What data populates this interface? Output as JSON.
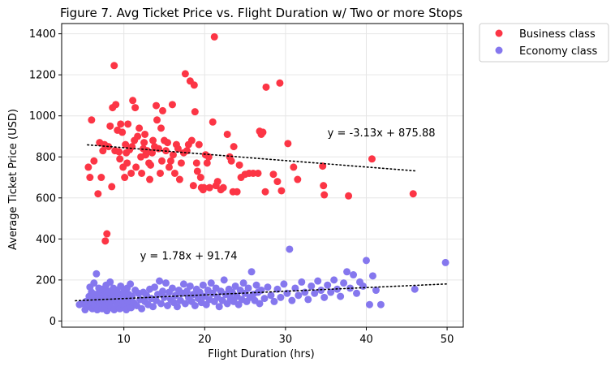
{
  "chart_data": {
    "type": "scatter",
    "title": "Figure 7. Avg Ticket Price vs. Flight Duration w/ Two or more Stops",
    "xlabel": "Flight Duration (hrs)",
    "ylabel": "Average Ticket Price (USD)",
    "xlim": [
      2.3,
      52.0
    ],
    "ylim": [
      -30,
      1450
    ],
    "xticks": [
      10,
      20,
      30,
      40,
      50
    ],
    "yticks": [
      0,
      200,
      400,
      600,
      800,
      1000,
      1200,
      1400
    ],
    "grid": true,
    "legend_position": "outside-top-right",
    "series": [
      {
        "name": "Business class",
        "color": "#fc3545",
        "points": [
          [
            5.6,
            750
          ],
          [
            5.8,
            700
          ],
          [
            6.0,
            980
          ],
          [
            6.3,
            780
          ],
          [
            6.8,
            620
          ],
          [
            7.0,
            870
          ],
          [
            7.2,
            700
          ],
          [
            7.4,
            830
          ],
          [
            7.6,
            860
          ],
          [
            7.7,
            390
          ],
          [
            7.9,
            425
          ],
          [
            8.1,
            850
          ],
          [
            8.3,
            950
          ],
          [
            8.5,
            655
          ],
          [
            8.6,
            1040
          ],
          [
            8.8,
            1245
          ],
          [
            8.9,
            830
          ],
          [
            9.0,
            1055
          ],
          [
            9.2,
            930
          ],
          [
            9.4,
            825
          ],
          [
            9.5,
            790
          ],
          [
            9.6,
            960
          ],
          [
            9.8,
            920
          ],
          [
            9.9,
            750
          ],
          [
            10.1,
            700
          ],
          [
            10.2,
            860
          ],
          [
            10.3,
            820
          ],
          [
            10.4,
            770
          ],
          [
            10.5,
            960
          ],
          [
            10.7,
            835
          ],
          [
            10.9,
            720
          ],
          [
            11.0,
            850
          ],
          [
            11.1,
            1075
          ],
          [
            11.3,
            880
          ],
          [
            11.4,
            1040
          ],
          [
            11.5,
            750
          ],
          [
            11.7,
            900
          ],
          [
            11.9,
            940
          ],
          [
            12.1,
            800
          ],
          [
            12.2,
            720
          ],
          [
            12.4,
            840
          ],
          [
            12.5,
            870
          ],
          [
            12.6,
            910
          ],
          [
            12.7,
            810
          ],
          [
            12.9,
            830
          ],
          [
            13.1,
            770
          ],
          [
            13.2,
            690
          ],
          [
            13.3,
            760
          ],
          [
            13.5,
            820
          ],
          [
            13.6,
            880
          ],
          [
            13.8,
            850
          ],
          [
            14.0,
            1050
          ],
          [
            14.1,
            980
          ],
          [
            14.3,
            840
          ],
          [
            14.5,
            720
          ],
          [
            14.6,
            940
          ],
          [
            14.7,
            780
          ],
          [
            14.8,
            1025
          ],
          [
            15.0,
            880
          ],
          [
            15.2,
            830
          ],
          [
            15.4,
            870
          ],
          [
            15.6,
            750
          ],
          [
            15.8,
            780
          ],
          [
            16.0,
            1055
          ],
          [
            16.1,
            810
          ],
          [
            16.3,
            720
          ],
          [
            16.5,
            860
          ],
          [
            16.7,
            840
          ],
          [
            16.9,
            690
          ],
          [
            17.1,
            770
          ],
          [
            17.4,
            820
          ],
          [
            17.6,
            1205
          ],
          [
            17.8,
            830
          ],
          [
            18.0,
            860
          ],
          [
            18.2,
            1170
          ],
          [
            18.4,
            880
          ],
          [
            18.6,
            660
          ],
          [
            18.7,
            1150
          ],
          [
            18.8,
            1020
          ],
          [
            19.0,
            770
          ],
          [
            19.1,
            730
          ],
          [
            19.3,
            860
          ],
          [
            19.5,
            700
          ],
          [
            19.6,
            650
          ],
          [
            19.8,
            640
          ],
          [
            19.9,
            650
          ],
          [
            20.1,
            810
          ],
          [
            20.3,
            770
          ],
          [
            20.5,
            800
          ],
          [
            20.6,
            650
          ],
          [
            21.0,
            970
          ],
          [
            21.2,
            1385
          ],
          [
            21.4,
            660
          ],
          [
            21.6,
            680
          ],
          [
            22.0,
            640
          ],
          [
            22.3,
            650
          ],
          [
            22.8,
            910
          ],
          [
            23.1,
            800
          ],
          [
            23.3,
            780
          ],
          [
            23.5,
            630
          ],
          [
            23.6,
            850
          ],
          [
            24.0,
            630
          ],
          [
            24.3,
            760
          ],
          [
            24.5,
            700
          ],
          [
            25.0,
            715
          ],
          [
            25.5,
            720
          ],
          [
            26.0,
            720
          ],
          [
            26.6,
            720
          ],
          [
            26.8,
            925
          ],
          [
            27.0,
            910
          ],
          [
            27.2,
            920
          ],
          [
            27.5,
            630
          ],
          [
            27.6,
            1140
          ],
          [
            28.5,
            715
          ],
          [
            29.0,
            680
          ],
          [
            29.3,
            1160
          ],
          [
            29.5,
            635
          ],
          [
            30.3,
            865
          ],
          [
            31.0,
            750
          ],
          [
            31.5,
            690
          ],
          [
            34.6,
            755
          ],
          [
            34.7,
            660
          ],
          [
            34.8,
            615
          ],
          [
            37.8,
            610
          ],
          [
            40.7,
            790
          ],
          [
            45.8,
            620
          ]
        ]
      },
      {
        "name": "Economy class",
        "color": "#8577ee",
        "points": [
          [
            4.5,
            80
          ],
          [
            4.9,
            85
          ],
          [
            5.2,
            55
          ],
          [
            5.3,
            95
          ],
          [
            5.5,
            70
          ],
          [
            5.7,
            120
          ],
          [
            5.8,
            165
          ],
          [
            5.9,
            85
          ],
          [
            6.0,
            140
          ],
          [
            6.1,
            60
          ],
          [
            6.2,
            105
          ],
          [
            6.3,
            185
          ],
          [
            6.4,
            75
          ],
          [
            6.5,
            130
          ],
          [
            6.6,
            230
          ],
          [
            6.7,
            55
          ],
          [
            6.8,
            100
          ],
          [
            6.9,
            160
          ],
          [
            7.0,
            80
          ],
          [
            7.1,
            140
          ],
          [
            7.2,
            110
          ],
          [
            7.3,
            60
          ],
          [
            7.4,
            155
          ],
          [
            7.5,
            95
          ],
          [
            7.6,
            125
          ],
          [
            7.7,
            70
          ],
          [
            7.8,
            175
          ],
          [
            7.9,
            50
          ],
          [
            8.0,
            115
          ],
          [
            8.1,
            145
          ],
          [
            8.2,
            85
          ],
          [
            8.3,
            190
          ],
          [
            8.4,
            65
          ],
          [
            8.5,
            130
          ],
          [
            8.6,
            100
          ],
          [
            8.7,
            160
          ],
          [
            8.8,
            55
          ],
          [
            8.9,
            120
          ],
          [
            9.0,
            90
          ],
          [
            9.1,
            150
          ],
          [
            9.2,
            75
          ],
          [
            9.3,
            135
          ],
          [
            9.4,
            110
          ],
          [
            9.5,
            60
          ],
          [
            9.6,
            170
          ],
          [
            9.7,
            85
          ],
          [
            9.8,
            125
          ],
          [
            9.9,
            95
          ],
          [
            10.0,
            145
          ],
          [
            10.1,
            70
          ],
          [
            10.2,
            115
          ],
          [
            10.3,
            55
          ],
          [
            10.4,
            160
          ],
          [
            10.5,
            100
          ],
          [
            10.6,
            130
          ],
          [
            10.7,
            80
          ],
          [
            10.8,
            180
          ],
          [
            10.9,
            65
          ],
          [
            11.0,
            120
          ],
          [
            11.2,
            90
          ],
          [
            11.4,
            150
          ],
          [
            11.6,
            75
          ],
          [
            11.8,
            135
          ],
          [
            12.0,
            105
          ],
          [
            12.2,
            60
          ],
          [
            12.4,
            140
          ],
          [
            12.6,
            95
          ],
          [
            12.8,
            125
          ],
          [
            13.0,
            80
          ],
          [
            13.2,
            155
          ],
          [
            13.4,
            110
          ],
          [
            13.6,
            70
          ],
          [
            13.8,
            165
          ],
          [
            14.0,
            100
          ],
          [
            14.2,
            130
          ],
          [
            14.4,
            195
          ],
          [
            14.6,
            85
          ],
          [
            14.8,
            145
          ],
          [
            15.0,
            115
          ],
          [
            15.2,
            185
          ],
          [
            15.4,
            75
          ],
          [
            15.6,
            140
          ],
          [
            15.8,
            105
          ],
          [
            16.0,
            160
          ],
          [
            16.2,
            90
          ],
          [
            16.4,
            125
          ],
          [
            16.6,
            70
          ],
          [
            16.8,
            150
          ],
          [
            17.0,
            100
          ],
          [
            17.2,
            135
          ],
          [
            17.4,
            180
          ],
          [
            17.6,
            85
          ],
          [
            17.8,
            145
          ],
          [
            18.0,
            115
          ],
          [
            18.2,
            170
          ],
          [
            18.4,
            95
          ],
          [
            18.6,
            130
          ],
          [
            18.8,
            75
          ],
          [
            19.0,
            155
          ],
          [
            19.2,
            110
          ],
          [
            19.4,
            140
          ],
          [
            19.6,
            90
          ],
          [
            19.8,
            175
          ],
          [
            20.0,
            120
          ],
          [
            20.2,
            80
          ],
          [
            20.4,
            150
          ],
          [
            20.6,
            105
          ],
          [
            20.8,
            185
          ],
          [
            21.0,
            135
          ],
          [
            21.2,
            95
          ],
          [
            21.4,
            160
          ],
          [
            21.6,
            115
          ],
          [
            21.8,
            70
          ],
          [
            22.0,
            145
          ],
          [
            22.2,
            100
          ],
          [
            22.4,
            200
          ],
          [
            22.6,
            130
          ],
          [
            22.8,
            85
          ],
          [
            23.0,
            155
          ],
          [
            23.2,
            110
          ],
          [
            23.4,
            140
          ],
          [
            23.6,
            95
          ],
          [
            23.8,
            170
          ],
          [
            24.0,
            120
          ],
          [
            24.2,
            80
          ],
          [
            24.4,
            150
          ],
          [
            24.6,
            105
          ],
          [
            24.8,
            185
          ],
          [
            25.0,
            135
          ],
          [
            25.2,
            95
          ],
          [
            25.4,
            160
          ],
          [
            25.6,
            115
          ],
          [
            25.8,
            240
          ],
          [
            26.0,
            130
          ],
          [
            26.2,
            100
          ],
          [
            26.4,
            175
          ],
          [
            26.6,
            140
          ],
          [
            26.8,
            85
          ],
          [
            27.0,
            150
          ],
          [
            27.4,
            110
          ],
          [
            27.8,
            165
          ],
          [
            28.2,
            125
          ],
          [
            28.6,
            95
          ],
          [
            29.0,
            155
          ],
          [
            29.4,
            115
          ],
          [
            29.8,
            180
          ],
          [
            30.2,
            135
          ],
          [
            30.5,
            350
          ],
          [
            30.8,
            100
          ],
          [
            31.2,
            160
          ],
          [
            31.6,
            125
          ],
          [
            32.0,
            190
          ],
          [
            32.4,
            140
          ],
          [
            32.8,
            105
          ],
          [
            33.2,
            170
          ],
          [
            33.6,
            135
          ],
          [
            34.0,
            195
          ],
          [
            34.4,
            150
          ],
          [
            34.8,
            115
          ],
          [
            35.2,
            175
          ],
          [
            35.6,
            140
          ],
          [
            36.0,
            200
          ],
          [
            36.4,
            155
          ],
          [
            36.8,
            120
          ],
          [
            37.2,
            185
          ],
          [
            37.6,
            240
          ],
          [
            38.0,
            160
          ],
          [
            38.4,
            225
          ],
          [
            38.8,
            135
          ],
          [
            39.2,
            190
          ],
          [
            39.6,
            170
          ],
          [
            40.0,
            295
          ],
          [
            40.4,
            80
          ],
          [
            40.8,
            220
          ],
          [
            41.2,
            150
          ],
          [
            41.8,
            80
          ],
          [
            46.0,
            155
          ],
          [
            49.8,
            285
          ]
        ]
      }
    ],
    "trendlines": [
      {
        "series": "Business class",
        "slope": -3.13,
        "intercept": 875.88,
        "x_range": [
          5.5,
          46.0
        ],
        "label": "y = -3.13x + 875.88",
        "label_anchor": [
          35.2,
          900
        ]
      },
      {
        "series": "Economy class",
        "slope": 1.78,
        "intercept": 91.74,
        "x_range": [
          4.0,
          50.0
        ],
        "label": "y = 1.78x + 91.74",
        "label_anchor": [
          12.0,
          300
        ]
      }
    ]
  }
}
